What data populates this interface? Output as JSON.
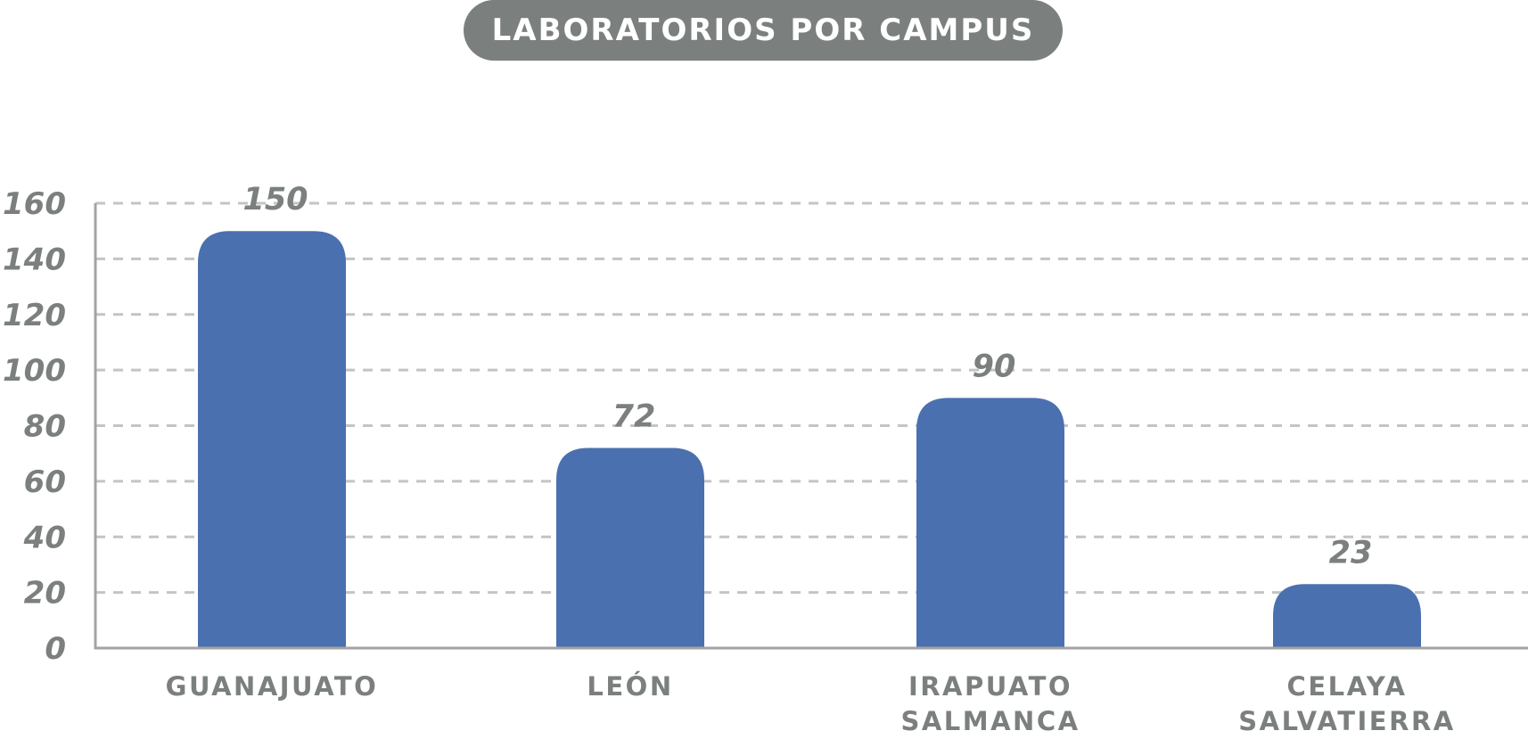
{
  "chart_data": {
    "type": "bar",
    "title": "LABORATORIOS POR CAMPUS",
    "categories": [
      [
        "GUANAJUATO"
      ],
      [
        "LEÓN"
      ],
      [
        "IRAPUATO",
        "SALMANCA"
      ],
      [
        "CELAYA",
        "SALVATIERRA"
      ]
    ],
    "values": [
      150,
      72,
      90,
      23
    ],
    "ylim": [
      0,
      160
    ],
    "yticks": [
      0,
      20,
      40,
      60,
      80,
      100,
      120,
      140,
      160
    ],
    "grid": true,
    "colors": {
      "bar": "#4a70b0",
      "text": "#7b807f",
      "grid": "#c4c4c4",
      "axis": "#a3a3a3"
    }
  }
}
